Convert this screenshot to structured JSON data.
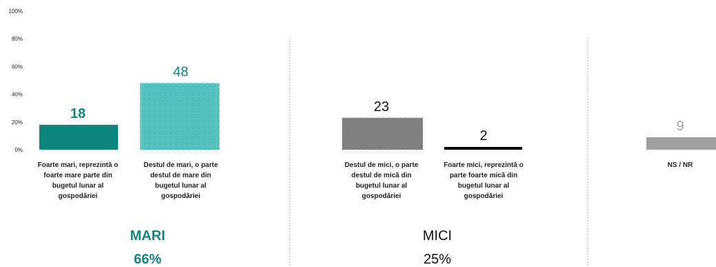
{
  "chart_data": {
    "type": "bar",
    "ylim": [
      0,
      100
    ],
    "yticks": [
      "0%",
      "20%",
      "40%",
      "60%",
      "80%",
      "100%"
    ],
    "categories": [
      "Foarte mari, reprezintă o foarte mare parte din bugetul lunar al gospodăriei",
      "Destul de mari, o parte destul de mare din bugetul lunar al gospodăriei",
      "Destul de mici, o parte destul de mică din bugetul lunar al gospodăriei",
      "Foarte mici, reprezintă o parte foarte mică din bugetul lunar al gospodăriei",
      "NS / NR"
    ],
    "values": [
      18,
      48,
      23,
      2,
      9
    ],
    "value_labels": [
      "18",
      "48",
      "23",
      "2",
      "9"
    ],
    "category_label_lines": [
      [
        "Foarte mari, reprezintă o",
        "foarte mare parte din",
        "bugetul lunar al",
        "gospodăriei"
      ],
      [
        "Destul de mari, o parte",
        "destul de mare din",
        "bugetul lunar al",
        "gospodăriei"
      ],
      [
        "Destul de mici, o parte",
        "destul de mică din",
        "bugetul lunar al",
        "gospodăriei"
      ],
      [
        "Foarte mici, reprezintă o",
        "parte foarte mică din",
        "bugetul lunar al",
        "gospodăriei"
      ],
      [
        "NS / NR"
      ]
    ],
    "bar_fills": [
      "solid-teal",
      "dotted-teal",
      "dotted-black",
      "solid-black",
      "solid-gray"
    ],
    "colors": {
      "teal": "#0f8580",
      "black": "#000000",
      "gray": "#a0a0a0",
      "divider": "#9a9a9a"
    },
    "groups": [
      {
        "label": "MARI",
        "total": "66%",
        "color": "#0f8580",
        "bold": true
      },
      {
        "label": "MICI",
        "total": "25%",
        "color": "#111111",
        "bold": false
      }
    ],
    "grid": false,
    "legend": "none"
  }
}
